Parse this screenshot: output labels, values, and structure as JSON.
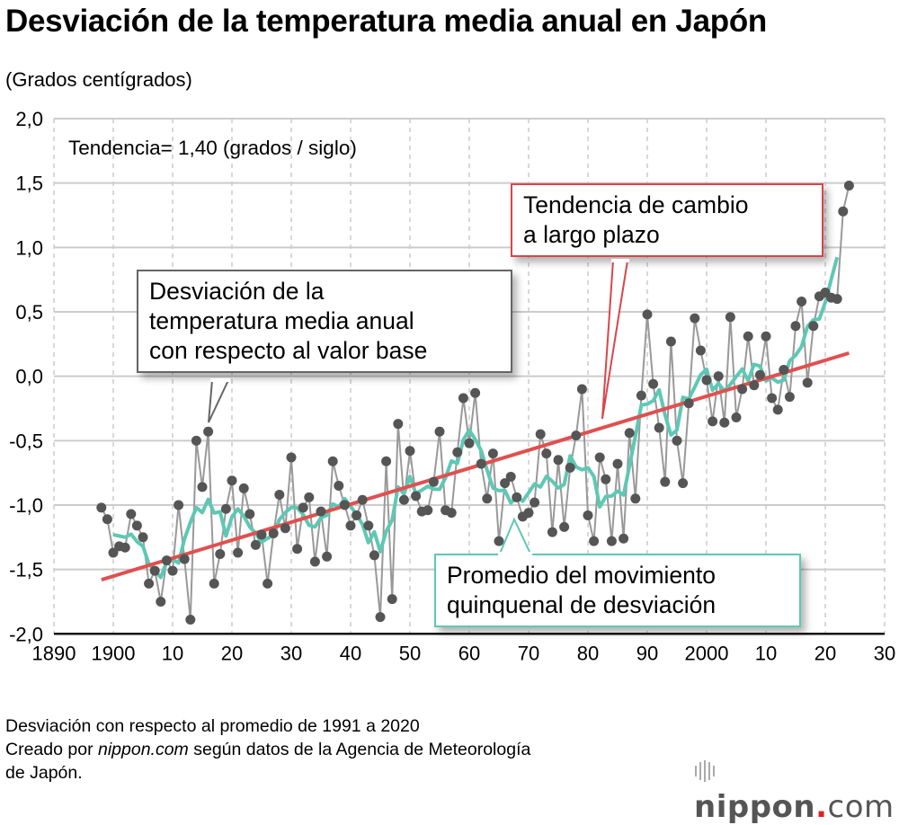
{
  "chart_data": {
    "type": "line",
    "title": "Desviación de la temperatura media anual en Japón",
    "ylabel": "(Grados centígrados)",
    "xlabel": "",
    "xlim": [
      1890,
      2030
    ],
    "ylim": [
      -2.0,
      2.0
    ],
    "x_ticks": [
      "1890",
      "1900",
      "10",
      "20",
      "30",
      "40",
      "50",
      "60",
      "70",
      "80",
      "90",
      "2000",
      "10",
      "20",
      "30"
    ],
    "y_ticks": [
      "2,0",
      "1,5",
      "1,0",
      "0,5",
      "0,0",
      "-0,5",
      "-1,0",
      "-1,5",
      "-2,0"
    ],
    "grid": true,
    "trend_label": "Tendencia= 1,40 (grados / siglo)",
    "annual": {
      "name": "Desviación de la temperatura media anual con respecto al valor base",
      "start_year": 1898,
      "values": [
        -1.02,
        -1.11,
        -1.37,
        -1.32,
        -1.33,
        -1.07,
        -1.16,
        -1.25,
        -1.61,
        -1.51,
        -1.75,
        -1.43,
        -1.51,
        -1.0,
        -1.42,
        -1.89,
        -0.5,
        -0.86,
        -0.43,
        -1.61,
        -1.38,
        -1.03,
        -0.81,
        -1.37,
        -0.87,
        -1.07,
        -1.31,
        -1.23,
        -1.61,
        -1.22,
        -0.92,
        -1.18,
        -0.63,
        -1.34,
        -1.02,
        -0.94,
        -1.44,
        -1.05,
        -1.4,
        -0.66,
        -0.85,
        -1.0,
        -1.16,
        -1.08,
        -0.96,
        -1.16,
        -1.39,
        -1.87,
        -0.66,
        -1.73,
        -0.37,
        -0.96,
        -0.58,
        -0.93,
        -1.05,
        -1.04,
        -0.82,
        -0.43,
        -1.04,
        -1.06,
        -0.59,
        -0.17,
        -0.52,
        -0.13,
        -0.68,
        -0.95,
        -0.6,
        -1.28,
        -0.83,
        -0.78,
        -0.94,
        -1.09,
        -1.06,
        -0.98,
        -0.45,
        -0.6,
        -1.21,
        -0.65,
        -1.17,
        -0.71,
        -0.46,
        -0.1,
        -1.08,
        -1.28,
        -0.63,
        -0.8,
        -1.28,
        -0.68,
        -1.26,
        -0.44,
        -0.95,
        -0.15,
        0.48,
        -0.06,
        -0.4,
        -0.82,
        0.27,
        -0.5,
        -0.83,
        -0.21,
        0.45,
        0.2,
        -0.03,
        -0.35,
        0.0,
        -0.36,
        0.46,
        -0.32,
        -0.1,
        0.31,
        -0.07,
        0.01,
        0.31,
        -0.17,
        -0.26,
        0.05,
        -0.16,
        0.39,
        0.58,
        -0.05,
        0.39,
        0.62,
        0.65,
        0.61,
        0.6,
        1.28,
        1.48
      ]
    },
    "moving_average": {
      "name": "Promedio del movimiento quinquenal de desviación",
      "window": 5
    },
    "trend": {
      "name": "Tendencia de cambio a largo plazo",
      "slope_per_century": 1.4,
      "start": [
        1898,
        -1.58
      ],
      "end": [
        2024,
        0.18
      ]
    },
    "colors": {
      "annual_line": "#999999",
      "annual_point": "#555555",
      "moving_average": "#5ec8b4",
      "trend": "#e05050",
      "grid": "#cccccc"
    }
  },
  "callouts": {
    "annual": [
      "Desviación de la",
      "temperatura media anual",
      "con respecto al valor base"
    ],
    "trend": [
      "Tendencia de cambio",
      "a largo plazo"
    ],
    "moving": [
      "Promedio del movimiento",
      "quinquenal de desviación"
    ]
  },
  "footer": {
    "line1": "Desviación con respecto al promedio de 1991 a 2020",
    "line2_prefix": "Creado por ",
    "line2_site": "nippon.com",
    "line2_suffix": " según datos de la Agencia de Meteorología",
    "line3": "de Japón."
  },
  "logo": {
    "name": "nippon",
    "dot": ".",
    "tld": "com"
  }
}
